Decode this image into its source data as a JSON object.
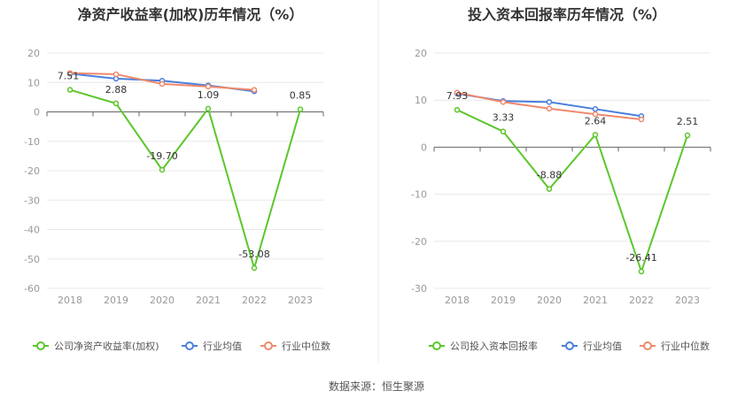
{
  "chart_data": [
    {
      "type": "line",
      "title": "净资产收益率(加权)历年情况（%）",
      "categories": [
        "2018",
        "2019",
        "2020",
        "2021",
        "2022",
        "2023"
      ],
      "ylim": [
        -60,
        20
      ],
      "yticks": [
        20,
        10,
        0,
        -10,
        -20,
        -30,
        -40,
        -50,
        -60
      ],
      "grid": true,
      "legend_position": "bottom",
      "series": [
        {
          "name": "公司净资产收益率(加权)",
          "color": "#5cc62c",
          "values": [
            7.51,
            2.88,
            -19.7,
            1.09,
            -53.08,
            0.85
          ],
          "labels": [
            "7.51",
            "2.88",
            "-19.70",
            "1.09",
            "-53.08",
            "0.85"
          ]
        },
        {
          "name": "行业均值",
          "color": "#4a7fdd",
          "values": [
            13.0,
            11.3,
            10.6,
            9.0,
            7.0,
            null
          ]
        },
        {
          "name": "行业中位数",
          "color": "#f0896b",
          "values": [
            13.2,
            12.8,
            9.5,
            8.6,
            7.5,
            null
          ]
        }
      ]
    },
    {
      "type": "line",
      "title": "投入资本回报率历年情况（%）",
      "categories": [
        "2018",
        "2019",
        "2020",
        "2021",
        "2022",
        "2023"
      ],
      "ylim": [
        -30,
        20
      ],
      "yticks": [
        20,
        10,
        0,
        -10,
        -20,
        -30
      ],
      "grid": true,
      "legend_position": "bottom",
      "series": [
        {
          "name": "公司投入资本回报率",
          "color": "#5cc62c",
          "values": [
            7.93,
            3.33,
            -8.88,
            2.64,
            -26.41,
            2.51
          ],
          "labels": [
            "7.93",
            "3.33",
            "-8.88",
            "2.64",
            "-26.41",
            "2.51"
          ]
        },
        {
          "name": "行业均值",
          "color": "#4a7fdd",
          "values": [
            11.4,
            9.8,
            9.6,
            8.1,
            6.6,
            null
          ]
        },
        {
          "name": "行业中位数",
          "color": "#f0896b",
          "values": [
            11.6,
            9.6,
            8.2,
            7.0,
            5.9,
            null
          ]
        }
      ]
    }
  ],
  "source_text": "数据来源：恒生聚源"
}
